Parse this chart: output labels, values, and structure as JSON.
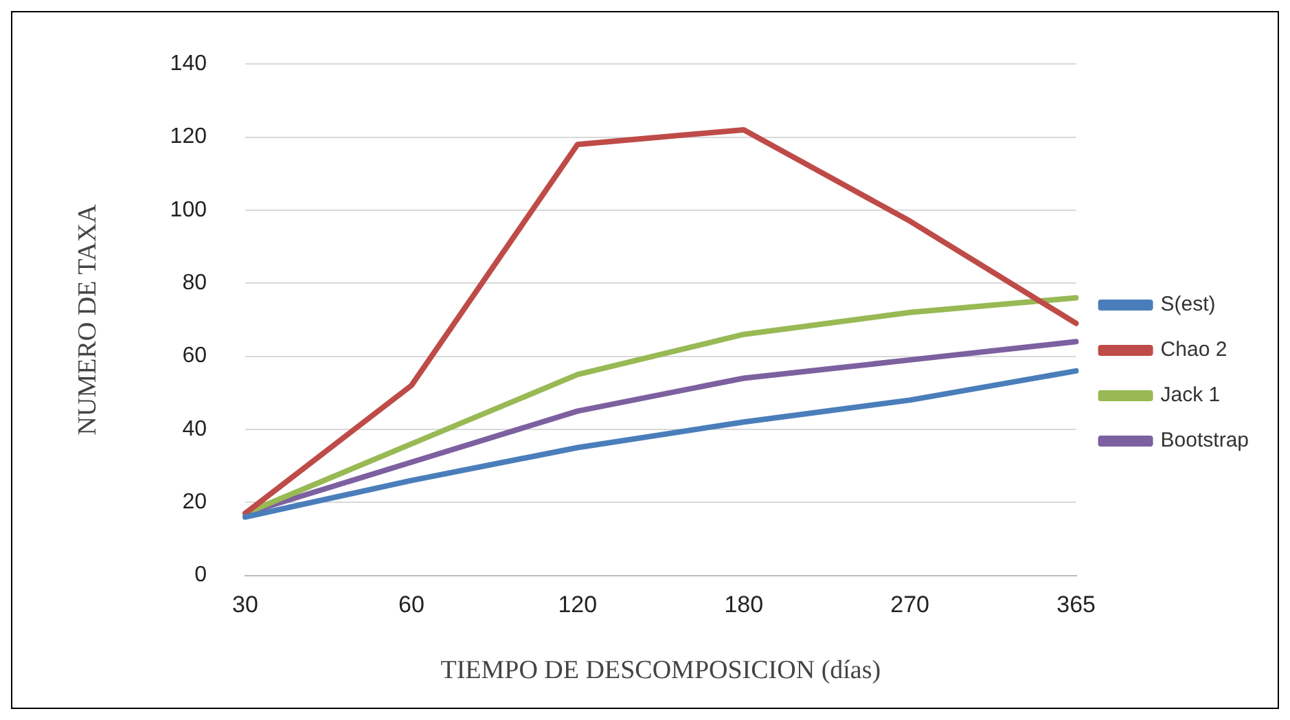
{
  "chart_data": {
    "type": "line",
    "xlabel": "TIEMPO DE DESCOMPOSICION (días)",
    "ylabel": "NUMERO DE TAXA",
    "categories": [
      "30",
      "60",
      "120",
      "180",
      "270",
      "365"
    ],
    "series": [
      {
        "name": "S(est)",
        "color": "#4a7ebb",
        "values": [
          16,
          26,
          35,
          42,
          48,
          56
        ]
      },
      {
        "name": "Chao 2",
        "color": "#be4b48",
        "values": [
          17,
          52,
          118,
          122,
          97,
          69
        ]
      },
      {
        "name": "Jack 1",
        "color": "#98b954",
        "values": [
          17,
          36,
          55,
          66,
          72,
          76
        ]
      },
      {
        "name": "Bootstrap",
        "color": "#7d60a0",
        "values": [
          17,
          31,
          45,
          54,
          59,
          64
        ]
      }
    ],
    "ylim": [
      0,
      140
    ],
    "yticks": [
      0,
      20,
      40,
      60,
      80,
      100,
      120,
      140
    ],
    "grid": "y",
    "legend": "right",
    "marker": "none",
    "line_style": "solid"
  }
}
